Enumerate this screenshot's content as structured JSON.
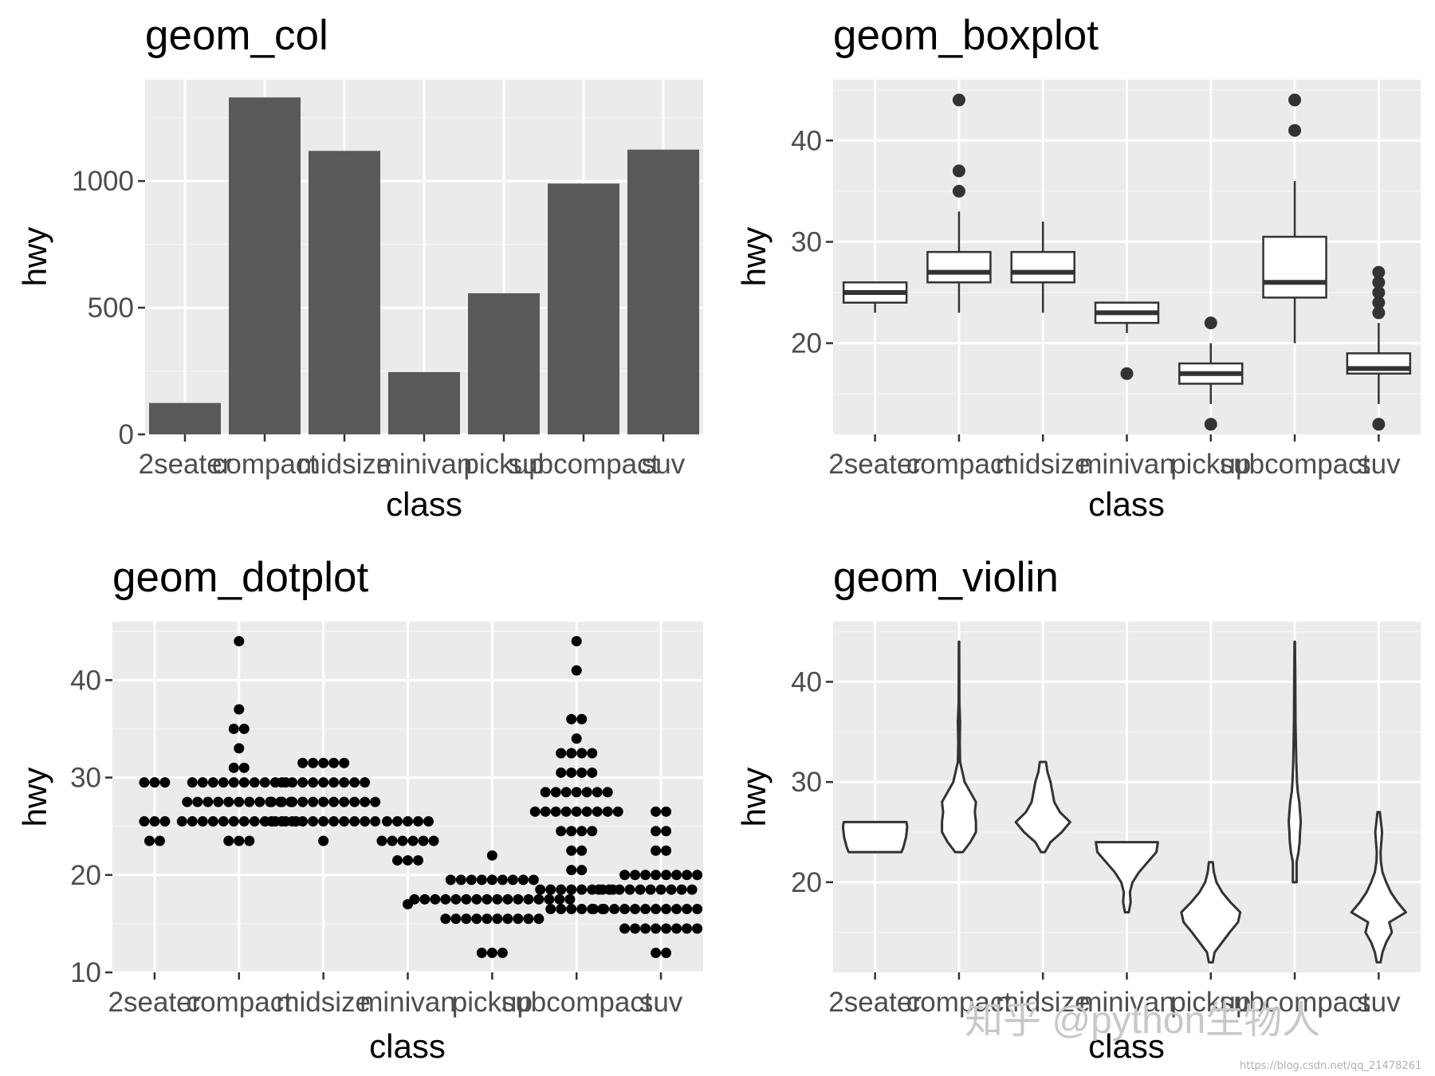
{
  "chart_data": [
    {
      "type": "bar",
      "title": "geom_col",
      "xlabel": "class",
      "ylabel": "hwy",
      "ylim": [
        0,
        1400
      ],
      "yticks": [
        0,
        500,
        1000
      ],
      "categories": [
        "2seater",
        "compact",
        "midsize",
        "minivan",
        "pickup",
        "subcompact",
        "suv"
      ],
      "values": [
        124,
        1330,
        1119,
        246,
        557,
        990,
        1124
      ],
      "grid": true,
      "colors": {
        "bar": "#595959",
        "panel": "#ebebeb",
        "grid": "#ffffff"
      }
    },
    {
      "type": "boxplot",
      "title": "geom_boxplot",
      "xlabel": "class",
      "ylabel": "hwy",
      "ylim": [
        11,
        46
      ],
      "yticks": [
        20,
        30,
        40
      ],
      "categories": [
        "2seater",
        "compact",
        "midsize",
        "minivan",
        "pickup",
        "subcompact",
        "suv"
      ],
      "boxes": [
        {
          "whisker_low": 23,
          "q1": 24,
          "median": 25,
          "q3": 26,
          "whisker_high": 26,
          "outliers": []
        },
        {
          "whisker_low": 23,
          "q1": 26,
          "median": 27,
          "q3": 29,
          "whisker_high": 33,
          "outliers": [
            35,
            37,
            44
          ]
        },
        {
          "whisker_low": 23,
          "q1": 26,
          "median": 27,
          "q3": 29,
          "whisker_high": 32,
          "outliers": []
        },
        {
          "whisker_low": 21,
          "q1": 22,
          "median": 23,
          "q3": 24,
          "whisker_high": 24,
          "outliers": [
            17
          ]
        },
        {
          "whisker_low": 14,
          "q1": 16,
          "median": 17,
          "q3": 18,
          "whisker_high": 20,
          "outliers": [
            12,
            22
          ]
        },
        {
          "whisker_low": 20,
          "q1": 24.5,
          "median": 26,
          "q3": 30.5,
          "whisker_high": 36,
          "outliers": [
            41,
            44
          ]
        },
        {
          "whisker_low": 14,
          "q1": 17,
          "median": 17.5,
          "q3": 19,
          "whisker_high": 22,
          "outliers": [
            12,
            23,
            24,
            25,
            26,
            27
          ]
        }
      ],
      "grid": true
    },
    {
      "type": "dotplot",
      "title": "geom_dotplot",
      "xlabel": "class",
      "ylabel": "hwy",
      "ylim": [
        10,
        46
      ],
      "yticks": [
        10,
        20,
        30,
        40
      ],
      "categories": [
        "2seater",
        "compact",
        "midsize",
        "minivan",
        "pickup",
        "subcompact",
        "suv"
      ],
      "stacks": [
        {
          "bins": [
            [
              23.5,
              2
            ],
            [
              25.5,
              3
            ],
            [
              29.5,
              3
            ]
          ]
        },
        {
          "bins": [
            [
              23.5,
              3
            ],
            [
              25.5,
              12
            ],
            [
              27.5,
              11
            ],
            [
              29.5,
              10
            ],
            [
              31,
              2
            ],
            [
              33,
              1
            ],
            [
              35,
              2
            ],
            [
              37,
              1
            ],
            [
              44,
              1
            ]
          ]
        },
        {
          "bins": [
            [
              23.5,
              1
            ],
            [
              25.5,
              11
            ],
            [
              27.5,
              11
            ],
            [
              29.5,
              9
            ],
            [
              31.5,
              5
            ]
          ]
        },
        {
          "bins": [
            [
              17,
              1
            ],
            [
              21.5,
              3
            ],
            [
              23.5,
              6
            ],
            [
              25.5,
              5
            ]
          ]
        },
        {
          "bins": [
            [
              12,
              3
            ],
            [
              15.5,
              10
            ],
            [
              17.5,
              16
            ],
            [
              19.5,
              9
            ],
            [
              22,
              1
            ]
          ]
        },
        {
          "bins": [
            [
              16.5,
              6
            ],
            [
              18.5,
              8
            ],
            [
              20.5,
              2
            ],
            [
              22.5,
              2
            ],
            [
              24.5,
              4
            ],
            [
              26.5,
              9
            ],
            [
              28.5,
              7
            ],
            [
              30.5,
              4
            ],
            [
              32.5,
              4
            ],
            [
              34,
              1
            ],
            [
              36,
              2
            ],
            [
              41,
              1
            ],
            [
              44,
              1
            ]
          ]
        },
        {
          "bins": [
            [
              12,
              2
            ],
            [
              14.5,
              8
            ],
            [
              16.5,
              14
            ],
            [
              18.5,
              13
            ],
            [
              20,
              8
            ],
            [
              22.5,
              2
            ],
            [
              24.5,
              2
            ],
            [
              26.5,
              2
            ]
          ]
        }
      ],
      "grid": true
    },
    {
      "type": "violin",
      "title": "geom_violin",
      "xlabel": "class",
      "ylabel": "hwy",
      "ylim": [
        11,
        46
      ],
      "yticks": [
        20,
        30,
        40
      ],
      "categories": [
        "2seater",
        "compact",
        "midsize",
        "minivan",
        "pickup",
        "subcompact",
        "suv"
      ],
      "violins": [
        {
          "profile": [
            [
              23,
              0.7
            ],
            [
              23.5,
              0.75
            ],
            [
              24.5,
              0.82
            ],
            [
              25.5,
              0.85
            ],
            [
              26,
              0.83
            ]
          ]
        },
        {
          "profile": [
            [
              23,
              0.1
            ],
            [
              24,
              0.3
            ],
            [
              25,
              0.45
            ],
            [
              26,
              0.45
            ],
            [
              27,
              0.42
            ],
            [
              28,
              0.45
            ],
            [
              29,
              0.3
            ],
            [
              30,
              0.15
            ],
            [
              32,
              0.03
            ],
            [
              34,
              0.02
            ],
            [
              36,
              0.03
            ],
            [
              38,
              0.01
            ],
            [
              44,
              0.005
            ]
          ]
        },
        {
          "profile": [
            [
              23,
              0.05
            ],
            [
              24,
              0.2
            ],
            [
              25,
              0.5
            ],
            [
              26,
              0.72
            ],
            [
              27,
              0.45
            ],
            [
              28,
              0.3
            ],
            [
              29,
              0.25
            ],
            [
              30,
              0.2
            ],
            [
              31,
              0.12
            ],
            [
              32,
              0.08
            ]
          ]
        },
        {
          "profile": [
            [
              17,
              0.05
            ],
            [
              18,
              0.1
            ],
            [
              19,
              0.08
            ],
            [
              20,
              0.15
            ],
            [
              21,
              0.32
            ],
            [
              22,
              0.55
            ],
            [
              23,
              0.78
            ],
            [
              24,
              0.82
            ]
          ]
        },
        {
          "profile": [
            [
              12,
              0.05
            ],
            [
              13,
              0.1
            ],
            [
              14,
              0.3
            ],
            [
              15,
              0.5
            ],
            [
              16,
              0.72
            ],
            [
              17,
              0.78
            ],
            [
              18,
              0.52
            ],
            [
              19,
              0.3
            ],
            [
              20,
              0.15
            ],
            [
              21,
              0.08
            ],
            [
              22,
              0.05
            ]
          ]
        },
        {
          "profile": [
            [
              20,
              0.05
            ],
            [
              22,
              0.05
            ],
            [
              23,
              0.1
            ],
            [
              24,
              0.13
            ],
            [
              25,
              0.14
            ],
            [
              26,
              0.16
            ],
            [
              27,
              0.14
            ],
            [
              28,
              0.12
            ],
            [
              29,
              0.08
            ],
            [
              30,
              0.06
            ],
            [
              32,
              0.04
            ],
            [
              36,
              0.02
            ],
            [
              40,
              0.015
            ],
            [
              44,
              0.005
            ]
          ]
        },
        {
          "profile": [
            [
              12,
              0.05
            ],
            [
              13,
              0.1
            ],
            [
              14,
              0.2
            ],
            [
              15,
              0.35
            ],
            [
              16,
              0.28
            ],
            [
              17,
              0.72
            ],
            [
              18,
              0.5
            ],
            [
              19,
              0.32
            ],
            [
              20,
              0.2
            ],
            [
              21,
              0.1
            ],
            [
              22,
              0.06
            ],
            [
              23,
              0.05
            ],
            [
              24,
              0.07
            ],
            [
              25,
              0.09
            ],
            [
              26,
              0.06
            ],
            [
              27,
              0.03
            ]
          ]
        }
      ],
      "grid": true
    }
  ],
  "watermark": {
    "main": "知乎 @python生物人",
    "sub": "https://blog.csdn.net/qq_21478261"
  }
}
